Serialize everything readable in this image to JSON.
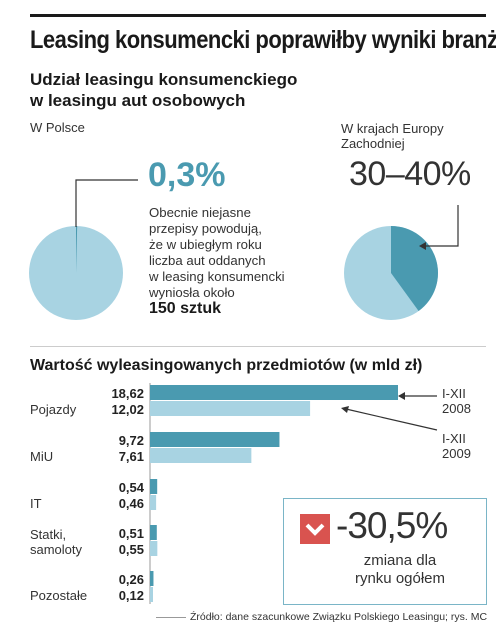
{
  "headline": "Leasing konsumencki poprawiłby wyniki branży",
  "subtitle": [
    "Udział leasingu konsumenckiego",
    "w leasingu aut osobowych"
  ],
  "poland": {
    "label": "W Polsce",
    "value": "0,3%",
    "share": 0.3,
    "note": [
      "Obecnie niejasne",
      "przepisy powodują,",
      "że w ubiegłym roku",
      "liczba aut oddanych",
      "w leasing konsumencki",
      "wyniosła około"
    ],
    "note_strong": "150 sztuk"
  },
  "western_europe": {
    "label": [
      "W krajach Europy",
      "Zachodniej"
    ],
    "value": "30–40%",
    "share": 40
  },
  "colors": {
    "dark": "#4a9ab0",
    "light": "#a8d3e2",
    "accent": "#d9534f",
    "border": "#7ab5c7"
  },
  "chart_data": {
    "type": "bar",
    "title": "Wartość wyleasingowanych przedmiotów (w mld zł)",
    "categories": [
      [
        "Pojazdy"
      ],
      [
        "MiU"
      ],
      [
        "IT"
      ],
      [
        "Statki,",
        "samoloty"
      ],
      [
        "Pozostałe"
      ]
    ],
    "series": [
      {
        "name": "I-XII 2008",
        "values": [
          18.62,
          9.72,
          0.54,
          0.51,
          0.26
        ],
        "labels": [
          "18,62",
          "9,72",
          "0,54",
          "0,51",
          "0,26"
        ]
      },
      {
        "name": "I-XII 2009",
        "values": [
          12.02,
          7.61,
          0.46,
          0.55,
          0.12
        ],
        "labels": [
          "12,02",
          "7,61",
          "0,46",
          "0,55",
          "0,12"
        ]
      }
    ],
    "legend": [
      [
        "I-XII",
        "2008"
      ],
      [
        "I-XII",
        "2009"
      ]
    ]
  },
  "change": {
    "icon": "chevron-down-icon",
    "value": "-30,5%",
    "caption": [
      "zmiana dla",
      "rynku ogółem"
    ]
  },
  "footer": "Źródło: dane szacunkowe Związku Polskiego Leasingu; rys. MC"
}
